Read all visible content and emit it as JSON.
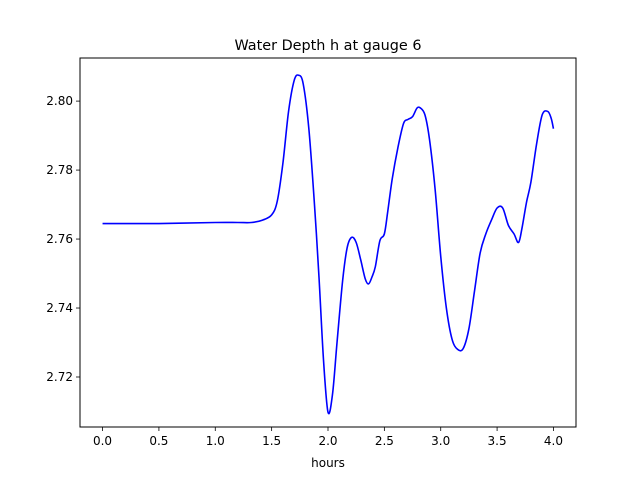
{
  "chart_data": {
    "type": "line",
    "title": "Water Depth h at gauge 6",
    "xlabel": "hours",
    "ylabel": "",
    "xlim": [
      -0.2,
      4.2
    ],
    "ylim": [
      2.7055,
      2.8125
    ],
    "xticks": [
      0.0,
      0.5,
      1.0,
      1.5,
      2.0,
      2.5,
      3.0,
      3.5,
      4.0
    ],
    "xtick_labels": [
      "0.0",
      "0.5",
      "1.0",
      "1.5",
      "2.0",
      "2.5",
      "3.0",
      "3.5",
      "4.0"
    ],
    "yticks": [
      2.72,
      2.74,
      2.76,
      2.78,
      2.8
    ],
    "ytick_labels": [
      "2.72",
      "2.74",
      "2.76",
      "2.78",
      "2.80"
    ],
    "grid": false,
    "series": [
      {
        "color": "#0000ff",
        "x": [
          0.0,
          0.5,
          1.0,
          1.2,
          1.32,
          1.42,
          1.5,
          1.55,
          1.6,
          1.65,
          1.7,
          1.74,
          1.78,
          1.83,
          1.88,
          1.92,
          1.96,
          2.0,
          2.04,
          2.08,
          2.13,
          2.17,
          2.21,
          2.25,
          2.29,
          2.33,
          2.36,
          2.39,
          2.42,
          2.46,
          2.5,
          2.53,
          2.57,
          2.62,
          2.67,
          2.71,
          2.75,
          2.79,
          2.82,
          2.86,
          2.9,
          2.95,
          3.0,
          3.05,
          3.1,
          3.15,
          3.2,
          3.25,
          3.3,
          3.35,
          3.4,
          3.45,
          3.5,
          3.55,
          3.6,
          3.65,
          3.69,
          3.72,
          3.76,
          3.8,
          3.85,
          3.9,
          3.95,
          3.98,
          4.0
        ],
        "y": [
          2.7645,
          2.7645,
          2.7648,
          2.7648,
          2.7648,
          2.7655,
          2.767,
          2.771,
          2.782,
          2.797,
          2.806,
          2.8075,
          2.805,
          2.792,
          2.77,
          2.749,
          2.725,
          2.7098,
          2.715,
          2.73,
          2.748,
          2.7575,
          2.7605,
          2.759,
          2.754,
          2.7485,
          2.747,
          2.749,
          2.752,
          2.7595,
          2.7615,
          2.768,
          2.7775,
          2.7865,
          2.7935,
          2.7947,
          2.7955,
          2.798,
          2.798,
          2.796,
          2.789,
          2.7745,
          2.755,
          2.74,
          2.731,
          2.728,
          2.7283,
          2.734,
          2.745,
          2.756,
          2.7615,
          2.7655,
          2.769,
          2.769,
          2.764,
          2.7615,
          2.759,
          2.763,
          2.7705,
          2.7765,
          2.7875,
          2.796,
          2.797,
          2.795,
          2.792
        ]
      }
    ]
  }
}
